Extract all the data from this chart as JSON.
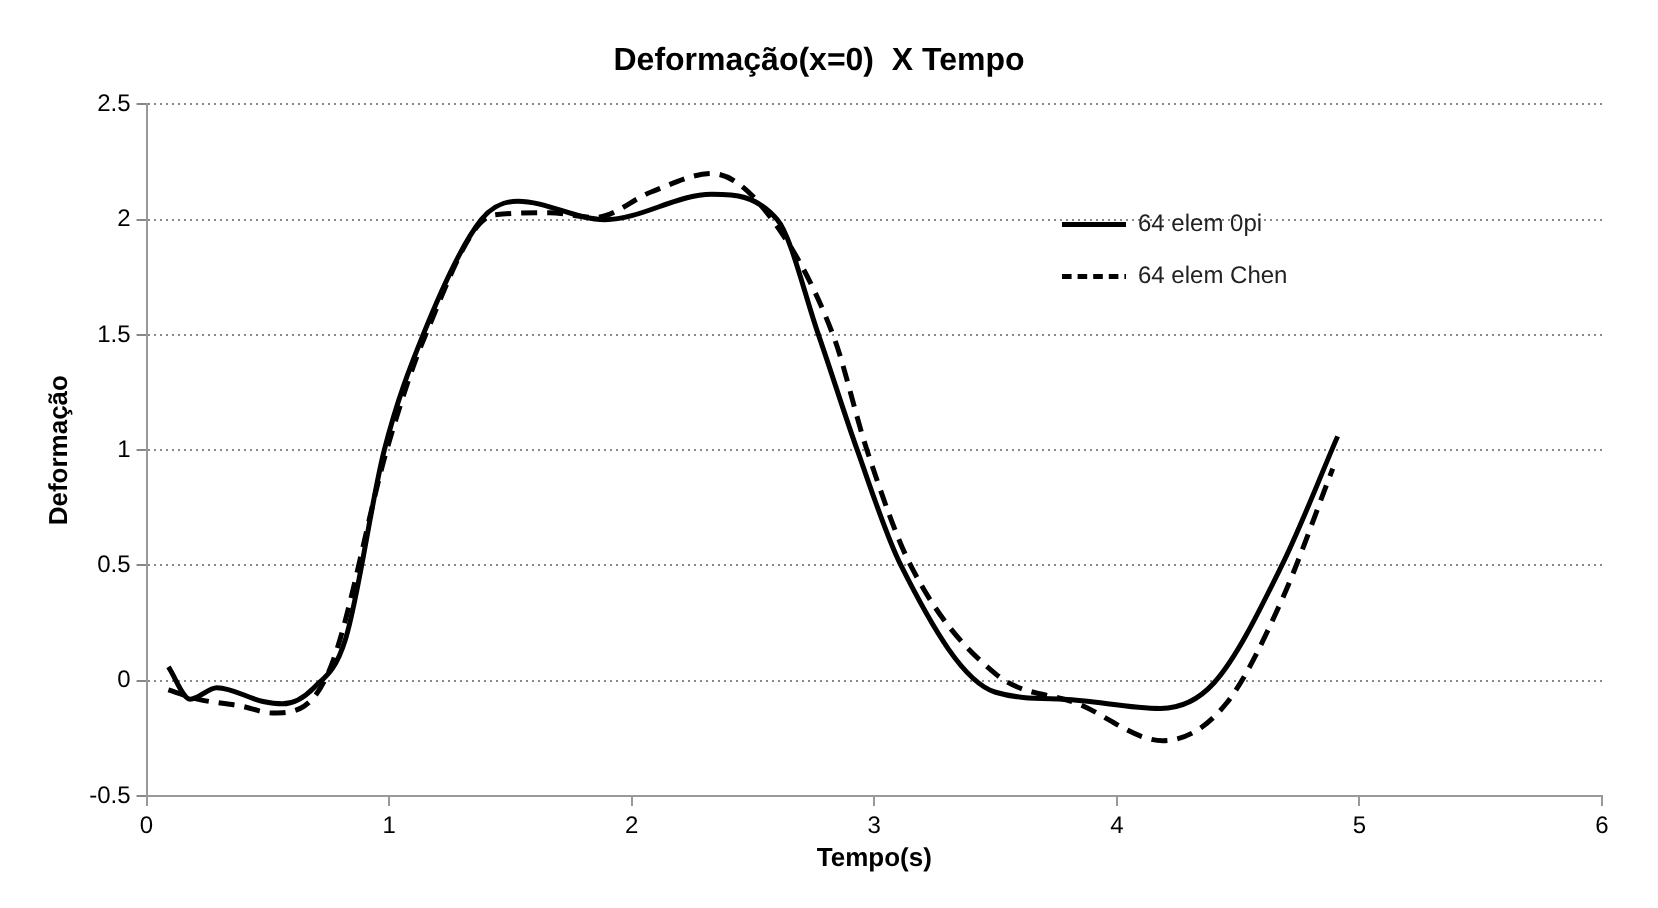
{
  "chart_data": {
    "type": "line",
    "title": "Deformação(x=0)  X Tempo",
    "xlabel": "Tempo(s)",
    "ylabel": "Deformação",
    "xlim": [
      0,
      6
    ],
    "xticks": [
      0,
      1,
      2,
      3,
      4,
      5,
      6
    ],
    "ylim": [
      -0.5,
      2.5
    ],
    "yticks": [
      -0.5,
      0,
      0.5,
      1,
      1.5,
      2,
      2.5
    ],
    "grid": "y",
    "legend": "top right",
    "marker": "none",
    "series": [
      {
        "name": "64 elem 0pi",
        "color": "#000000",
        "line_style": "solid",
        "x": [
          0.09,
          0.18,
          0.29,
          0.48,
          0.56,
          0.69,
          0.82,
          0.98,
          1.14,
          1.38,
          1.53,
          1.89,
          2.33,
          2.6,
          2.77,
          2.93,
          3.11,
          3.5,
          3.78,
          4.18,
          4.4,
          4.68,
          4.91
        ],
        "values": [
          0.06,
          -0.08,
          -0.03,
          -0.09,
          -0.1,
          -0.03,
          0.18,
          1.0,
          1.5,
          2.0,
          2.08,
          2.0,
          2.11,
          2.0,
          1.5,
          1.0,
          0.5,
          -0.05,
          -0.08,
          -0.12,
          -0.01,
          0.5,
          1.06
        ]
      },
      {
        "name": "64 elem Chen",
        "color": "#000000",
        "line_style": "dashed",
        "x": [
          0.09,
          0.21,
          0.39,
          0.52,
          0.65,
          0.77,
          0.99,
          1.15,
          1.43,
          1.66,
          1.85,
          2.08,
          2.33,
          2.55,
          2.83,
          2.97,
          3.15,
          3.5,
          3.84,
          4.19,
          4.45,
          4.68,
          4.89
        ],
        "values": [
          -0.04,
          -0.08,
          -0.11,
          -0.14,
          -0.11,
          0.09,
          1.0,
          1.5,
          2.02,
          2.03,
          2.01,
          2.12,
          2.2,
          2.04,
          1.5,
          1.0,
          0.5,
          0.03,
          -0.1,
          -0.26,
          -0.1,
          0.35,
          0.92
        ]
      }
    ]
  }
}
